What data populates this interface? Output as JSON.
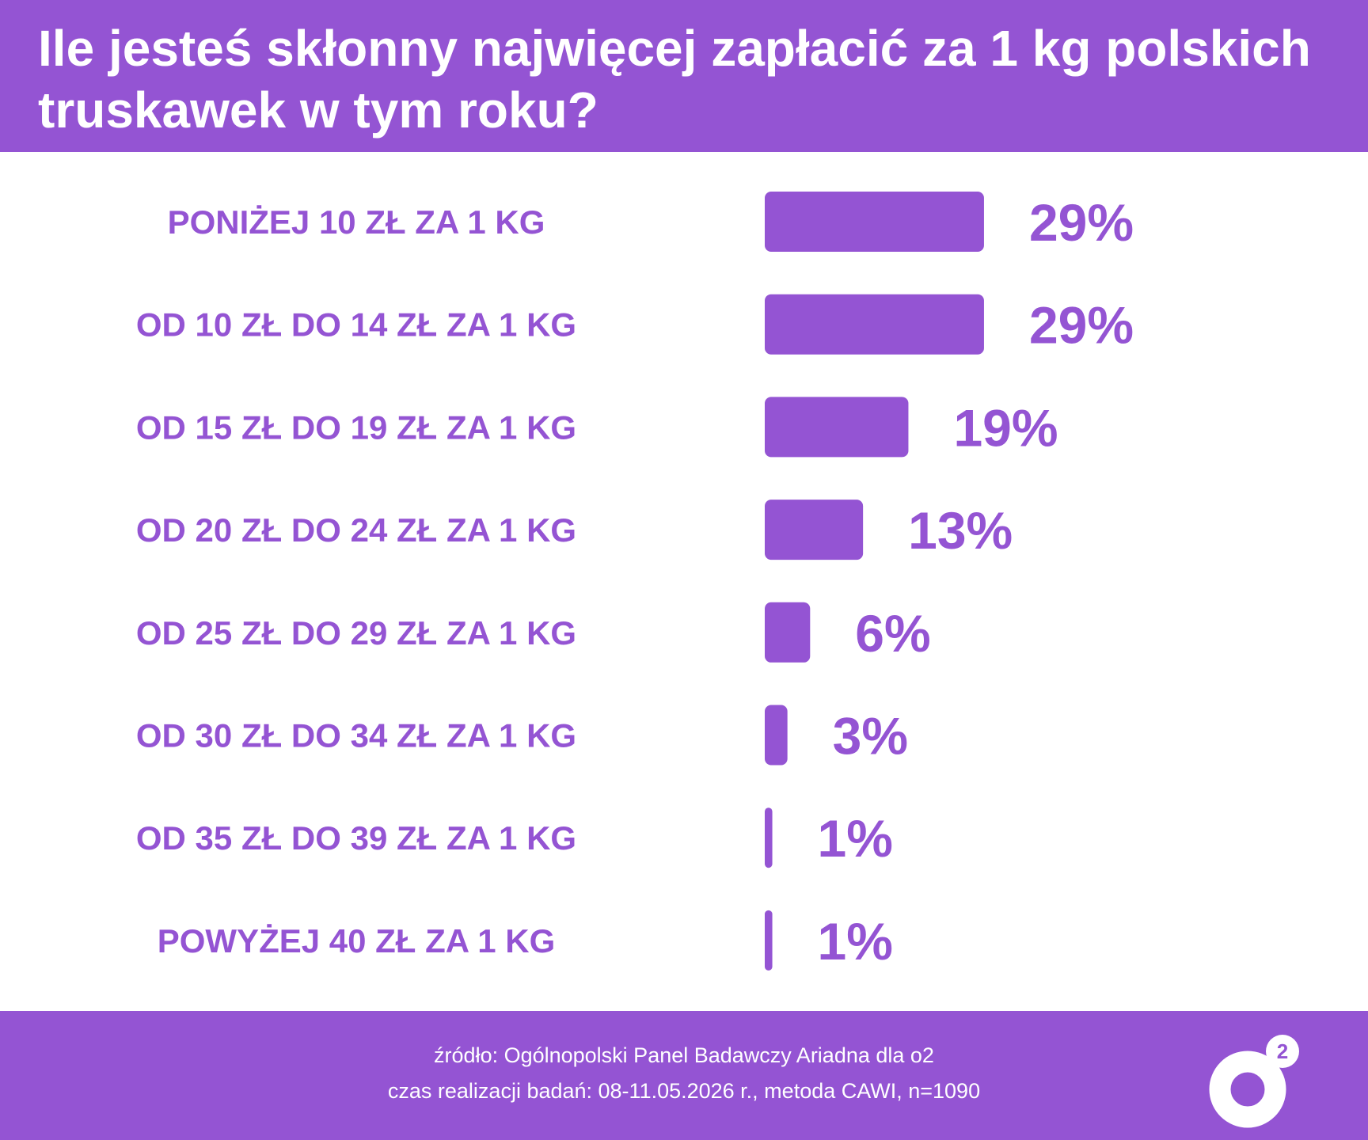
{
  "header": {
    "title": "Ile jesteś skłonny najwięcej zapłacić za 1 kg polskich truskawek w tym roku?"
  },
  "chart_data": {
    "type": "bar",
    "orientation": "horizontal",
    "title": "Ile jesteś skłonny najwięcej zapłacić za 1 kg polskich truskawek w tym roku?",
    "categories": [
      "PONIŻEJ 10 ZŁ ZA 1 KG",
      "OD 10 ZŁ DO 14 ZŁ ZA 1 KG",
      "OD 15 ZŁ DO 19 ZŁ ZA 1 KG",
      "OD 20 ZŁ DO 24 ZŁ ZA 1 KG",
      "OD 25 ZŁ DO 29 ZŁ ZA 1 KG",
      "OD 30 ZŁ DO 34 ZŁ ZA 1 KG",
      "OD 35 ZŁ DO 39 ZŁ ZA 1 KG",
      "POWYŻEJ 40 ZŁ ZA 1 KG"
    ],
    "values": [
      29,
      29,
      19,
      13,
      6,
      3,
      1,
      1
    ],
    "value_labels": [
      "29%",
      "29%",
      "19%",
      "13%",
      "6%",
      "3%",
      "1%",
      "1%"
    ],
    "unit": "%",
    "grid": false,
    "legend": "none",
    "bar_color": "#9454d3"
  },
  "footer": {
    "source": "źródło: Ogólnopolski Panel Badawczy Ariadna dla o2",
    "details": "czas realizacji badań: 08-11.05.2026 r., metoda CAWI, n=1090"
  },
  "logo": {
    "mark": "o",
    "superscript": "2"
  },
  "colors": {
    "accent": "#9454d3",
    "background": "#ffffff",
    "text_on_accent": "#ffffff"
  }
}
